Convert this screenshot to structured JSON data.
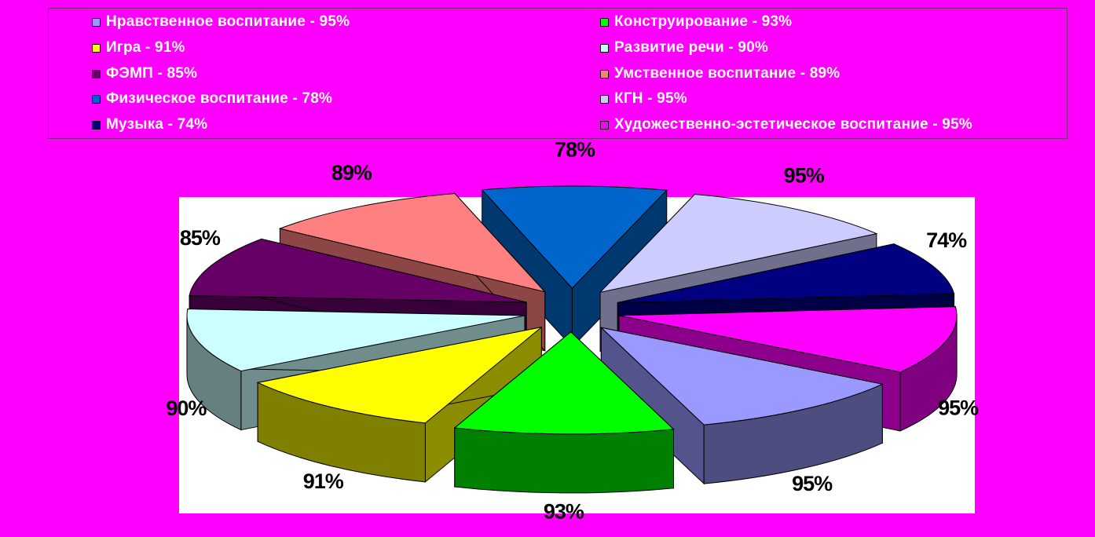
{
  "chart_data": {
    "type": "pie",
    "legend_position": "top",
    "series": [
      {
        "label": "Нравственное воспитание - 95%",
        "data_label": "95%",
        "value": 95,
        "color": "#9999ff"
      },
      {
        "label": "Игра - 91%",
        "data_label": "91%",
        "value": 91,
        "color": "#ffff00"
      },
      {
        "label": "ФЭМП - 85%",
        "data_label": "85%",
        "value": 85,
        "color": "#660066"
      },
      {
        "label": "Физическое воспитание - 78%",
        "data_label": "78%",
        "value": 78,
        "color": "#0066cc"
      },
      {
        "label": "Музыка - 74%",
        "data_label": "74%",
        "value": 74,
        "color": "#000080"
      },
      {
        "label": "Конструирование - 93%",
        "data_label": "93%",
        "value": 93,
        "color": "#00ff00"
      },
      {
        "label": "Развитие речи - 90%",
        "data_label": "90%",
        "value": 90,
        "color": "#ccffff"
      },
      {
        "label": "Умственное воспитание - 89%",
        "data_label": "89%",
        "value": 89,
        "color": "#ff8080"
      },
      {
        "label": "КГН - 95%",
        "data_label": "95%",
        "value": 95,
        "color": "#ccccff"
      },
      {
        "label": "Художественно-эстетическое воспитание - 95%",
        "data_label": "95%",
        "value": 95,
        "color": "#ff00ff"
      }
    ]
  }
}
